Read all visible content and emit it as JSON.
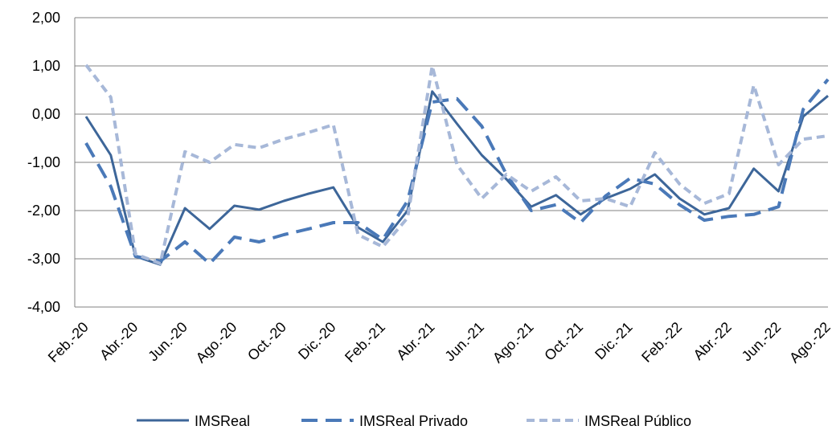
{
  "chart_data": {
    "type": "line",
    "categories": [
      "Feb.-20",
      null,
      "Abr.-20",
      null,
      "Jun.-20",
      null,
      "Ago.-20",
      null,
      "Oct.-20",
      null,
      "Dic.-20",
      null,
      "Feb.-21",
      null,
      "Abr.-21",
      null,
      "Jun.-21",
      null,
      "Ago.-21",
      null,
      "Oct.-21",
      null,
      "Dic.-21",
      null,
      "Feb.-22",
      null,
      "Abr.-22",
      null,
      "Jun.-22",
      null,
      "Ago.-22"
    ],
    "series": [
      {
        "name": "IMSReal",
        "color": "#3d6699",
        "values": [
          -0.05,
          -0.85,
          -2.95,
          -3.12,
          -1.95,
          -2.38,
          -1.9,
          -1.98,
          -1.8,
          -1.65,
          -1.52,
          -2.35,
          -2.65,
          -2.0,
          0.47,
          -0.2,
          -0.85,
          -1.35,
          -1.92,
          -1.68,
          -2.08,
          -1.75,
          -1.55,
          -1.25,
          -1.75,
          -2.08,
          -1.95,
          -1.13,
          -1.6,
          -0.05,
          0.38
        ]
      },
      {
        "name": "IMSReal Privado",
        "color": "#4a79b8",
        "values": [
          -0.6,
          -1.5,
          -2.95,
          -3.05,
          -2.65,
          -3.1,
          -2.55,
          -2.65,
          -2.5,
          -2.38,
          -2.25,
          -2.25,
          -2.6,
          -1.8,
          0.25,
          0.32,
          -0.25,
          -1.25,
          -2.0,
          -1.88,
          -2.25,
          -1.7,
          -1.33,
          -1.45,
          -1.88,
          -2.2,
          -2.12,
          -2.08,
          -1.92,
          0.1,
          0.72
        ]
      },
      {
        "name": "IMSReal Público",
        "color": "#a7b8d8",
        "values": [
          1.02,
          0.35,
          -2.9,
          -3.1,
          -0.78,
          -1.0,
          -0.63,
          -0.7,
          -0.52,
          -0.38,
          -0.22,
          -2.5,
          -2.75,
          -2.15,
          1.0,
          -1.05,
          -1.75,
          -1.25,
          -1.6,
          -1.3,
          -1.8,
          -1.75,
          -1.92,
          -0.8,
          -1.45,
          -1.85,
          -1.65,
          0.6,
          -1.05,
          -0.52,
          -0.45
        ]
      }
    ],
    "ylim": [
      -4,
      2
    ],
    "yticks": [
      {
        "value": -4,
        "label": "-4,00"
      },
      {
        "value": -3,
        "label": "-3,00"
      },
      {
        "value": -2,
        "label": "-2,00"
      },
      {
        "value": -1,
        "label": "-1,00"
      },
      {
        "value": 0,
        "label": "0,00"
      },
      {
        "value": 1,
        "label": "1,00"
      },
      {
        "value": 2,
        "label": "2,00"
      }
    ],
    "grid": true,
    "legend": "bottom"
  }
}
